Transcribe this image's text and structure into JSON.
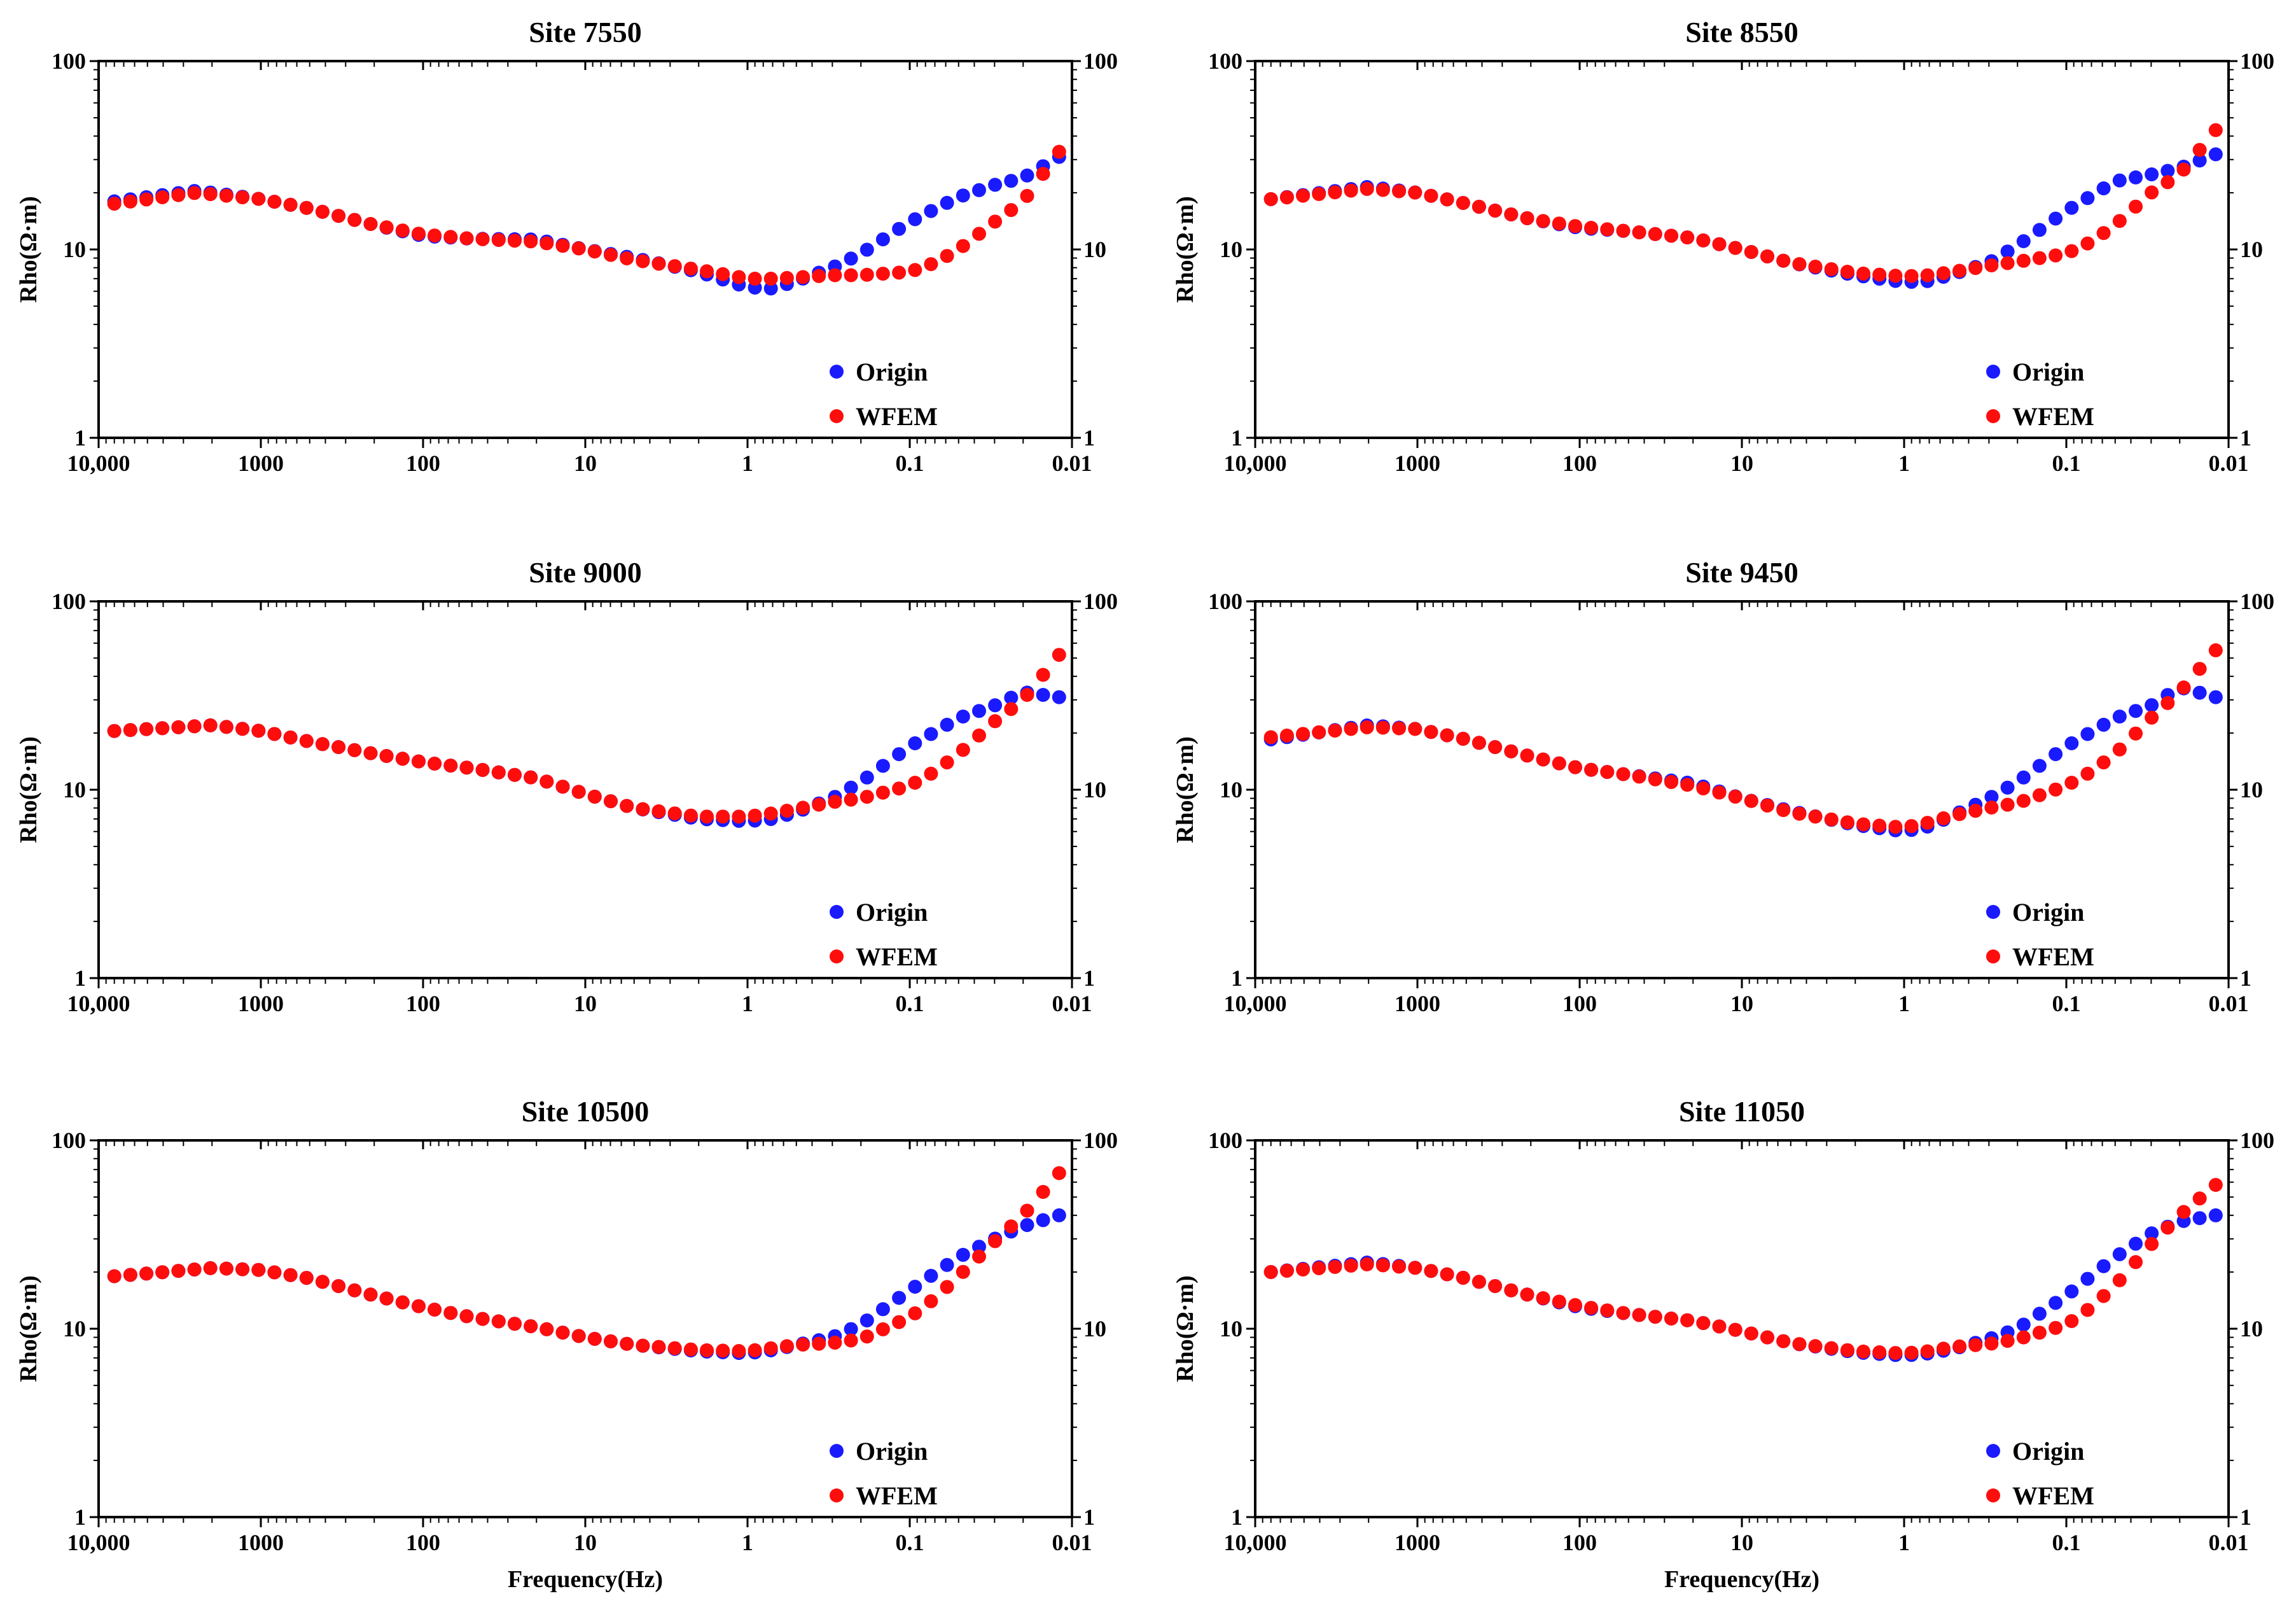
{
  "colors": {
    "origin": "#1a1aff",
    "wfem": "#ff0d0d",
    "axis": "#000000",
    "background": "#ffffff"
  },
  "chart_data": [
    {
      "type": "scatter",
      "title": "Site 7550",
      "xlabel": "",
      "ylabel": "Rho(Ω·m)",
      "xscale": "log",
      "yscale": "log",
      "xlim": [
        10000,
        0.01
      ],
      "ylim": [
        1,
        100
      ],
      "x_ticks": [
        "10,000",
        "1000",
        "100",
        "10",
        "1",
        "0.1",
        "0.01"
      ],
      "y_ticks": [
        "1",
        "10",
        "100"
      ],
      "legend": [
        "Origin",
        "WFEM"
      ],
      "legend_position": "bottom-right",
      "curves": {
        "Origin": [
          [
            8000,
            18
          ],
          [
            2500,
            20.5
          ],
          [
            1000,
            18.5
          ],
          [
            500,
            16.5
          ],
          [
            200,
            13.5
          ],
          [
            100,
            11.8
          ],
          [
            50,
            11.4
          ],
          [
            20,
            11.3
          ],
          [
            10,
            10
          ],
          [
            5,
            9
          ],
          [
            2,
            7.6
          ],
          [
            1,
            6.3
          ],
          [
            0.7,
            6.2
          ],
          [
            0.5,
            6.8
          ],
          [
            0.3,
            8
          ],
          [
            0.2,
            9.5
          ],
          [
            0.1,
            14
          ],
          [
            0.05,
            19
          ],
          [
            0.03,
            22
          ],
          [
            0.02,
            24
          ],
          [
            0.012,
            31
          ]
        ],
        "WFEM": [
          [
            8000,
            17.5
          ],
          [
            2500,
            20
          ],
          [
            1000,
            18.5
          ],
          [
            500,
            16.5
          ],
          [
            200,
            13.5
          ],
          [
            100,
            12
          ],
          [
            50,
            11.4
          ],
          [
            20,
            11
          ],
          [
            10,
            10
          ],
          [
            5,
            8.8
          ],
          [
            2,
            7.8
          ],
          [
            1,
            7
          ],
          [
            0.7,
            7
          ],
          [
            0.5,
            7.1
          ],
          [
            0.3,
            7.3
          ],
          [
            0.2,
            7.3
          ],
          [
            0.1,
            7.6
          ],
          [
            0.07,
            8.5
          ],
          [
            0.05,
            10
          ],
          [
            0.03,
            14
          ],
          [
            0.02,
            18
          ],
          [
            0.012,
            33
          ]
        ]
      }
    },
    {
      "type": "scatter",
      "title": "Site 8550",
      "xlabel": "",
      "ylabel": "Rho(Ω·m)",
      "xscale": "log",
      "yscale": "log",
      "xlim": [
        10000,
        0.01
      ],
      "ylim": [
        1,
        100
      ],
      "x_ticks": [
        "10,000",
        "1000",
        "100",
        "10",
        "1",
        "0.1",
        "0.01"
      ],
      "y_ticks": [
        "1",
        "10",
        "100"
      ],
      "legend": [
        "Origin",
        "WFEM"
      ],
      "legend_position": "bottom-right",
      "curves": {
        "Origin": [
          [
            8000,
            18.5
          ],
          [
            2000,
            21.5
          ],
          [
            1000,
            20
          ],
          [
            500,
            17.5
          ],
          [
            200,
            14.5
          ],
          [
            100,
            13
          ],
          [
            50,
            12.5
          ],
          [
            20,
            11.5
          ],
          [
            10,
            10
          ],
          [
            5,
            8.5
          ],
          [
            2,
            7.3
          ],
          [
            1,
            6.7
          ],
          [
            0.7,
            6.8
          ],
          [
            0.5,
            7.4
          ],
          [
            0.3,
            8.5
          ],
          [
            0.2,
            10.5
          ],
          [
            0.1,
            16
          ],
          [
            0.05,
            23
          ],
          [
            0.03,
            25
          ],
          [
            0.02,
            27
          ],
          [
            0.012,
            32
          ]
        ],
        "WFEM": [
          [
            8000,
            18.5
          ],
          [
            2000,
            21
          ],
          [
            1000,
            20
          ],
          [
            500,
            17.5
          ],
          [
            200,
            14.5
          ],
          [
            100,
            13.2
          ],
          [
            50,
            12.5
          ],
          [
            20,
            11.5
          ],
          [
            10,
            10
          ],
          [
            5,
            8.5
          ],
          [
            2,
            7.5
          ],
          [
            1,
            7.2
          ],
          [
            0.7,
            7.3
          ],
          [
            0.5,
            7.6
          ],
          [
            0.3,
            8.2
          ],
          [
            0.2,
            8.6
          ],
          [
            0.1,
            9.5
          ],
          [
            0.07,
            11
          ],
          [
            0.05,
            13.5
          ],
          [
            0.03,
            20
          ],
          [
            0.02,
            25
          ],
          [
            0.012,
            43
          ]
        ]
      }
    },
    {
      "type": "scatter",
      "title": "Site 9000",
      "xlabel": "",
      "ylabel": "Rho(Ω·m)",
      "xscale": "log",
      "yscale": "log",
      "xlim": [
        10000,
        0.01
      ],
      "ylim": [
        1,
        100
      ],
      "x_ticks": [
        "10,000",
        "1000",
        "100",
        "10",
        "1",
        "0.1",
        "0.01"
      ],
      "y_ticks": [
        "1",
        "10",
        "100"
      ],
      "legend": [
        "Origin",
        "WFEM"
      ],
      "legend_position": "bottom-right",
      "curves": {
        "Origin": [
          [
            8000,
            20.5
          ],
          [
            2000,
            22
          ],
          [
            1000,
            20.5
          ],
          [
            500,
            18
          ],
          [
            200,
            15.5
          ],
          [
            100,
            14
          ],
          [
            50,
            13
          ],
          [
            20,
            11.5
          ],
          [
            10,
            9.5
          ],
          [
            5,
            8
          ],
          [
            2,
            7
          ],
          [
            1,
            6.8
          ],
          [
            0.7,
            7
          ],
          [
            0.5,
            7.6
          ],
          [
            0.3,
            9
          ],
          [
            0.2,
            11
          ],
          [
            0.1,
            17
          ],
          [
            0.05,
            24
          ],
          [
            0.03,
            28
          ],
          [
            0.02,
            33
          ],
          [
            0.012,
            31
          ]
        ],
        "WFEM": [
          [
            8000,
            20.5
          ],
          [
            2000,
            22
          ],
          [
            1000,
            20.5
          ],
          [
            500,
            18
          ],
          [
            200,
            15.5
          ],
          [
            100,
            14
          ],
          [
            50,
            13
          ],
          [
            20,
            11.5
          ],
          [
            10,
            9.5
          ],
          [
            5,
            8
          ],
          [
            2,
            7.2
          ],
          [
            1,
            7.2
          ],
          [
            0.7,
            7.5
          ],
          [
            0.5,
            7.9
          ],
          [
            0.3,
            8.6
          ],
          [
            0.2,
            9
          ],
          [
            0.1,
            10.5
          ],
          [
            0.07,
            12.5
          ],
          [
            0.05,
            15.5
          ],
          [
            0.03,
            23
          ],
          [
            0.02,
            30
          ],
          [
            0.012,
            52
          ]
        ]
      }
    },
    {
      "type": "scatter",
      "title": "Site 9450",
      "xlabel": "",
      "ylabel": "Rho(Ω·m)",
      "xscale": "log",
      "yscale": "log",
      "xlim": [
        10000,
        0.01
      ],
      "ylim": [
        1,
        100
      ],
      "x_ticks": [
        "10,000",
        "1000",
        "100",
        "10",
        "1",
        "0.1",
        "0.01"
      ],
      "y_ticks": [
        "1",
        "10",
        "100"
      ],
      "legend": [
        "Origin",
        "WFEM"
      ],
      "legend_position": "bottom-right",
      "curves": {
        "Origin": [
          [
            8000,
            18.5
          ],
          [
            2000,
            22
          ],
          [
            1000,
            21
          ],
          [
            500,
            18.5
          ],
          [
            200,
            15
          ],
          [
            100,
            13
          ],
          [
            50,
            12
          ],
          [
            20,
            10.8
          ],
          [
            10,
            9
          ],
          [
            5,
            7.7
          ],
          [
            2,
            6.5
          ],
          [
            1,
            6
          ],
          [
            0.7,
            6.4
          ],
          [
            0.5,
            7.3
          ],
          [
            0.3,
            9
          ],
          [
            0.2,
            11
          ],
          [
            0.1,
            17
          ],
          [
            0.05,
            24
          ],
          [
            0.03,
            28
          ],
          [
            0.02,
            35
          ],
          [
            0.012,
            31
          ]
        ],
        "WFEM": [
          [
            8000,
            19
          ],
          [
            2000,
            21.5
          ],
          [
            1000,
            21
          ],
          [
            500,
            18.5
          ],
          [
            200,
            15
          ],
          [
            100,
            13
          ],
          [
            50,
            12
          ],
          [
            20,
            10.5
          ],
          [
            10,
            9
          ],
          [
            5,
            7.6
          ],
          [
            2,
            6.6
          ],
          [
            1,
            6.3
          ],
          [
            0.7,
            6.7
          ],
          [
            0.5,
            7.3
          ],
          [
            0.3,
            8
          ],
          [
            0.2,
            8.5
          ],
          [
            0.1,
            10.5
          ],
          [
            0.07,
            12.5
          ],
          [
            0.05,
            15.5
          ],
          [
            0.03,
            24
          ],
          [
            0.02,
            33
          ],
          [
            0.012,
            55
          ]
        ]
      }
    },
    {
      "type": "scatter",
      "title": "Site 10500",
      "xlabel": "Frequency(Hz)",
      "ylabel": "Rho(Ω·m)",
      "xscale": "log",
      "yscale": "log",
      "xlim": [
        10000,
        0.01
      ],
      "ylim": [
        1,
        100
      ],
      "x_ticks": [
        "10,000",
        "1000",
        "100",
        "10",
        "1",
        "0.1",
        "0.01"
      ],
      "y_ticks": [
        "1",
        "10",
        "100"
      ],
      "legend": [
        "Origin",
        "WFEM"
      ],
      "legend_position": "bottom-right",
      "curves": {
        "Origin": [
          [
            8000,
            19
          ],
          [
            2000,
            21
          ],
          [
            1000,
            20.5
          ],
          [
            500,
            18.5
          ],
          [
            200,
            15
          ],
          [
            100,
            13
          ],
          [
            50,
            11.5
          ],
          [
            20,
            10.2
          ],
          [
            10,
            9
          ],
          [
            5,
            8.2
          ],
          [
            2,
            7.6
          ],
          [
            1,
            7.4
          ],
          [
            0.7,
            7.7
          ],
          [
            0.5,
            8.2
          ],
          [
            0.3,
            9
          ],
          [
            0.2,
            10.5
          ],
          [
            0.1,
            16
          ],
          [
            0.05,
            24
          ],
          [
            0.03,
            30
          ],
          [
            0.02,
            35
          ],
          [
            0.012,
            40
          ]
        ],
        "WFEM": [
          [
            8000,
            19
          ],
          [
            2000,
            21
          ],
          [
            1000,
            20.5
          ],
          [
            500,
            18.5
          ],
          [
            200,
            15
          ],
          [
            100,
            13
          ],
          [
            50,
            11.5
          ],
          [
            20,
            10.2
          ],
          [
            10,
            9
          ],
          [
            5,
            8.2
          ],
          [
            2,
            7.7
          ],
          [
            1,
            7.6
          ],
          [
            0.7,
            7.9
          ],
          [
            0.5,
            8.2
          ],
          [
            0.3,
            8.4
          ],
          [
            0.2,
            8.8
          ],
          [
            0.1,
            11.5
          ],
          [
            0.07,
            14.5
          ],
          [
            0.05,
            19
          ],
          [
            0.03,
            29
          ],
          [
            0.02,
            40
          ],
          [
            0.012,
            67
          ]
        ]
      }
    },
    {
      "type": "scatter",
      "title": "Site 11050",
      "xlabel": "Frequency(Hz)",
      "ylabel": "Rho(Ω·m)",
      "xscale": "log",
      "yscale": "log",
      "xlim": [
        10000,
        0.01
      ],
      "ylim": [
        1,
        100
      ],
      "x_ticks": [
        "10,000",
        "1000",
        "100",
        "10",
        "1",
        "0.1",
        "0.01"
      ],
      "y_ticks": [
        "1",
        "10",
        "100"
      ],
      "legend": [
        "Origin",
        "WFEM"
      ],
      "legend_position": "bottom-right",
      "curves": {
        "Origin": [
          [
            8000,
            20
          ],
          [
            2000,
            22.5
          ],
          [
            1000,
            21
          ],
          [
            500,
            18.5
          ],
          [
            200,
            15
          ],
          [
            100,
            13
          ],
          [
            50,
            12
          ],
          [
            20,
            11
          ],
          [
            10,
            9.7
          ],
          [
            5,
            8.4
          ],
          [
            2,
            7.5
          ],
          [
            1,
            7.2
          ],
          [
            0.7,
            7.4
          ],
          [
            0.5,
            7.8
          ],
          [
            0.3,
            8.8
          ],
          [
            0.2,
            10
          ],
          [
            0.1,
            15
          ],
          [
            0.05,
            24
          ],
          [
            0.03,
            32
          ],
          [
            0.02,
            37
          ],
          [
            0.012,
            40
          ]
        ],
        "WFEM": [
          [
            8000,
            20
          ],
          [
            2000,
            22
          ],
          [
            1000,
            21
          ],
          [
            500,
            18.5
          ],
          [
            200,
            15
          ],
          [
            100,
            13.2
          ],
          [
            50,
            12
          ],
          [
            20,
            11
          ],
          [
            10,
            9.7
          ],
          [
            5,
            8.4
          ],
          [
            2,
            7.6
          ],
          [
            1,
            7.4
          ],
          [
            0.7,
            7.6
          ],
          [
            0.5,
            8
          ],
          [
            0.3,
            8.3
          ],
          [
            0.2,
            8.8
          ],
          [
            0.1,
            10.5
          ],
          [
            0.07,
            13
          ],
          [
            0.05,
            17
          ],
          [
            0.03,
            28
          ],
          [
            0.02,
            40
          ],
          [
            0.012,
            58
          ]
        ]
      }
    }
  ]
}
